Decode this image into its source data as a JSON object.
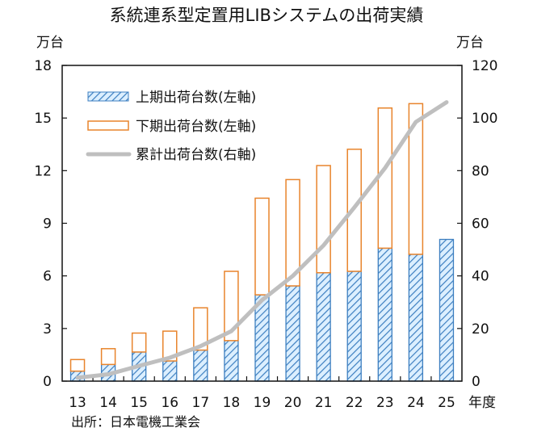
{
  "chart_data": {
    "type": "bar",
    "title": "系統連系型定置用LIBシステムの出荷実績",
    "ylabel_left": "万台",
    "ylabel_right": "万台",
    "xlabel": "年度",
    "source": "出所：日本電機工業会",
    "categories": [
      "13",
      "14",
      "15",
      "16",
      "17",
      "18",
      "19",
      "20",
      "21",
      "22",
      "23",
      "24",
      "25"
    ],
    "ylim_left": [
      0,
      18
    ],
    "yticks_left": [
      0,
      3,
      6,
      9,
      12,
      15,
      18
    ],
    "ylim_right": [
      0,
      120
    ],
    "yticks_right": [
      0,
      20,
      40,
      60,
      80,
      100,
      120
    ],
    "legend_position": "top-left",
    "series": [
      {
        "name": "上期出荷台数(左軸)",
        "type": "stacked-bar",
        "axis": "left",
        "color": "#3d7fc0",
        "fill": "#dcefff",
        "values": [
          0.57,
          0.95,
          1.66,
          1.15,
          1.77,
          2.31,
          4.92,
          5.43,
          6.18,
          6.26,
          7.58,
          7.23,
          8.08
        ]
      },
      {
        "name": "下期出荷台数(左軸)",
        "type": "stacked-bar",
        "axis": "left",
        "color": "#e8842c",
        "fill": "#ffffff",
        "values": [
          0.66,
          0.9,
          1.08,
          1.7,
          2.41,
          3.95,
          5.51,
          6.06,
          6.11,
          6.96,
          7.99,
          8.59,
          null
        ]
      },
      {
        "name": "累計出荷台数(右軸)",
        "type": "line",
        "axis": "right",
        "color": "#bfbfbf",
        "values": [
          1.3,
          2.6,
          5.8,
          8.9,
          13.3,
          19.0,
          30.8,
          40.0,
          51.6,
          66.0,
          81.0,
          98.5,
          106.0
        ]
      }
    ]
  }
}
